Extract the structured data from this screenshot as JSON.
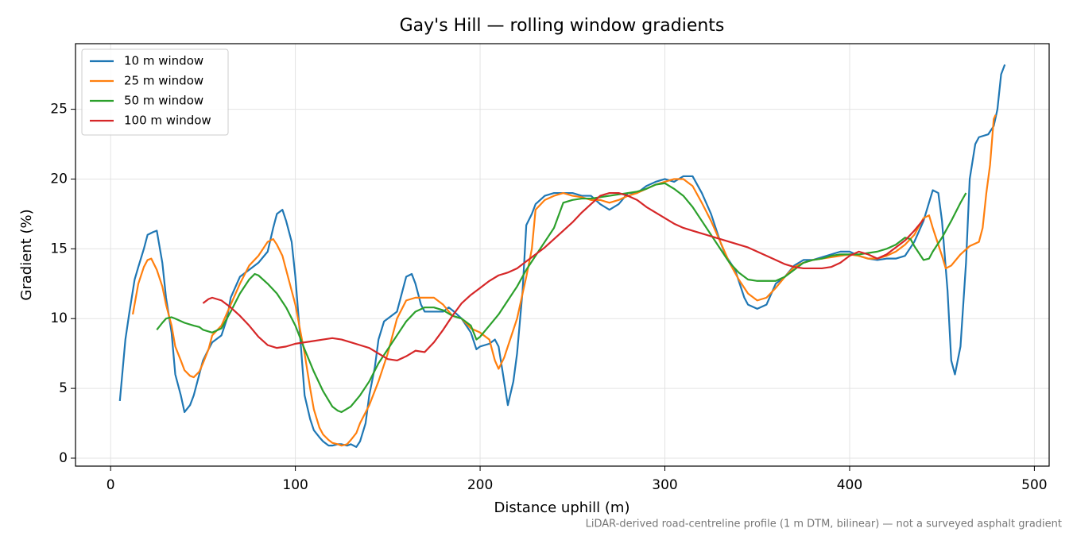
{
  "chart_data": {
    "type": "line",
    "title": "Gay's Hill — rolling window gradients",
    "x_label": "Distance uphill (m)",
    "y_label": "Gradient (%)",
    "footnote": "LiDAR-derived road-centreline profile (1 m DTM, bilinear) — not a surveyed asphalt gradient",
    "xlim": [
      -19,
      508
    ],
    "ylim": [
      -0.57,
      29.7
    ],
    "xticks": [
      0,
      100,
      200,
      300,
      400,
      500
    ],
    "yticks": [
      0,
      5,
      10,
      15,
      20,
      25
    ],
    "grid": true,
    "legend": "upper left",
    "series": [
      {
        "name": "10 m window",
        "color": "#1f77b4",
        "x": [
          5,
          8,
          10,
          13,
          15,
          18,
          20,
          23,
          25,
          28,
          30,
          33,
          35,
          38,
          40,
          43,
          45,
          48,
          50,
          53,
          55,
          58,
          60,
          63,
          65,
          70,
          75,
          80,
          85,
          88,
          90,
          93,
          95,
          98,
          100,
          103,
          105,
          108,
          110,
          113,
          115,
          118,
          120,
          123,
          125,
          128,
          130,
          133,
          135,
          138,
          140,
          143,
          145,
          148,
          150,
          155,
          158,
          160,
          163,
          165,
          168,
          170,
          175,
          180,
          183,
          185,
          190,
          195,
          198,
          200,
          205,
          208,
          210,
          213,
          215,
          218,
          220,
          223,
          225,
          228,
          230,
          235,
          240,
          245,
          250,
          255,
          260,
          265,
          270,
          275,
          280,
          285,
          290,
          295,
          300,
          305,
          310,
          315,
          320,
          325,
          330,
          333,
          338,
          343,
          345,
          350,
          355,
          360,
          365,
          370,
          375,
          380,
          385,
          390,
          395,
          400,
          405,
          410,
          415,
          420,
          425,
          430,
          435,
          440,
          445,
          448,
          450,
          453,
          455,
          457,
          460,
          463,
          465,
          468,
          470,
          475,
          478,
          480,
          482,
          484
        ],
        "values": [
          4.1,
          8.5,
          10.3,
          12.8,
          13.7,
          15,
          16,
          16.2,
          16.3,
          14,
          11.5,
          9,
          6,
          4.5,
          3.3,
          3.8,
          4.5,
          6,
          7,
          7.8,
          8.3,
          8.6,
          8.8,
          10,
          11.5,
          13,
          13.5,
          14,
          14.8,
          16.5,
          17.5,
          17.8,
          17,
          15.5,
          13,
          8,
          4.5,
          2.8,
          2,
          1.5,
          1.2,
          0.9,
          0.9,
          1.0,
          1.0,
          0.9,
          1,
          0.8,
          1.2,
          2.5,
          4.5,
          6.5,
          8.5,
          9.8,
          10,
          10.5,
          12,
          13,
          13.2,
          12.5,
          11,
          10.5,
          10.5,
          10.5,
          10.8,
          10.6,
          10,
          9,
          7.8,
          8,
          8.2,
          8.5,
          8,
          5.5,
          3.8,
          5.5,
          7.5,
          12,
          16.7,
          17.5,
          18.2,
          18.8,
          19,
          19,
          19,
          18.8,
          18.8,
          18.2,
          17.8,
          18.2,
          19,
          19,
          19.5,
          19.8,
          20,
          19.8,
          20.2,
          20.2,
          19,
          17.5,
          15.5,
          14.5,
          13.5,
          11.5,
          11,
          10.7,
          11,
          12.5,
          13,
          13.8,
          14.2,
          14.2,
          14.4,
          14.6,
          14.8,
          14.8,
          14.5,
          14.3,
          14.2,
          14.3,
          14.3,
          14.5,
          15.5,
          17,
          19.2,
          19,
          17,
          12,
          7,
          6,
          8,
          14,
          20,
          22.5,
          23,
          23.2,
          23.8,
          25,
          27.5,
          28.2
        ]
      },
      {
        "name": "25 m window",
        "color": "#ff7f0e",
        "x": [
          12,
          15,
          18,
          20,
          22,
          25,
          28,
          30,
          33,
          35,
          38,
          40,
          43,
          45,
          48,
          50,
          53,
          55,
          60,
          65,
          70,
          75,
          80,
          85,
          88,
          90,
          93,
          95,
          100,
          105,
          108,
          110,
          113,
          115,
          118,
          120,
          123,
          125,
          128,
          130,
          133,
          135,
          140,
          145,
          150,
          155,
          160,
          165,
          170,
          175,
          180,
          185,
          190,
          195,
          200,
          205,
          208,
          210,
          213,
          215,
          220,
          225,
          228,
          230,
          235,
          240,
          245,
          250,
          255,
          260,
          265,
          270,
          275,
          280,
          285,
          290,
          295,
          300,
          305,
          310,
          315,
          320,
          325,
          330,
          335,
          340,
          345,
          350,
          355,
          360,
          365,
          370,
          375,
          380,
          385,
          390,
          395,
          400,
          405,
          410,
          415,
          420,
          425,
          430,
          435,
          440,
          443,
          445,
          450,
          452,
          455,
          460,
          465,
          470,
          472,
          474,
          476,
          478,
          479
        ],
        "values": [
          10.3,
          12.5,
          13.7,
          14.2,
          14.3,
          13.5,
          12.3,
          11,
          9.5,
          8,
          7,
          6.3,
          5.9,
          5.8,
          6.2,
          6.8,
          7.8,
          8.8,
          9.5,
          11,
          12.5,
          13.8,
          14.5,
          15.5,
          15.7,
          15.3,
          14.5,
          13.5,
          11,
          7.5,
          5,
          3.5,
          2.2,
          1.7,
          1.3,
          1.1,
          1.0,
          0.9,
          1.0,
          1.3,
          1.8,
          2.5,
          3.8,
          5.5,
          7.5,
          10,
          11.3,
          11.5,
          11.5,
          11.5,
          11,
          10.2,
          10,
          9.3,
          9,
          8.5,
          7,
          6.4,
          7.2,
          8,
          10,
          13,
          15,
          17.8,
          18.5,
          18.8,
          19,
          18.8,
          18.7,
          18.5,
          18.5,
          18.3,
          18.5,
          18.8,
          19,
          19.3,
          19.6,
          19.8,
          20,
          20,
          19.5,
          18.3,
          17,
          15.5,
          14,
          12.8,
          11.8,
          11.3,
          11.5,
          12.2,
          13,
          13.7,
          14,
          14.2,
          14.3,
          14.4,
          14.5,
          14.6,
          14.5,
          14.3,
          14.3,
          14.5,
          14.8,
          15.3,
          16,
          17.2,
          17.4,
          16.5,
          14.5,
          13.6,
          13.8,
          14.6,
          15.2,
          15.5,
          16.5,
          19,
          21,
          24.3,
          24.6
        ]
      },
      {
        "name": "50 m window",
        "color": "#2ca02c",
        "x": [
          25,
          28,
          30,
          33,
          35,
          40,
          45,
          48,
          50,
          55,
          60,
          65,
          70,
          75,
          78,
          80,
          85,
          90,
          95,
          100,
          105,
          110,
          115,
          120,
          123,
          125,
          130,
          135,
          140,
          145,
          150,
          155,
          160,
          165,
          170,
          175,
          180,
          185,
          190,
          195,
          198,
          200,
          205,
          210,
          215,
          220,
          225,
          230,
          235,
          240,
          245,
          250,
          255,
          260,
          265,
          270,
          275,
          280,
          285,
          290,
          295,
          300,
          305,
          310,
          315,
          320,
          325,
          330,
          335,
          340,
          345,
          350,
          355,
          360,
          365,
          370,
          375,
          380,
          385,
          390,
          395,
          400,
          405,
          410,
          415,
          420,
          425,
          430,
          433,
          435,
          440,
          443,
          445,
          450,
          455,
          460,
          463
        ],
        "values": [
          9.2,
          9.7,
          10,
          10.1,
          10,
          9.7,
          9.5,
          9.4,
          9.2,
          9,
          9.3,
          10.5,
          11.8,
          12.8,
          13.2,
          13.1,
          12.5,
          11.8,
          10.8,
          9.5,
          7.8,
          6.2,
          4.8,
          3.7,
          3.4,
          3.3,
          3.7,
          4.5,
          5.5,
          6.8,
          7.8,
          8.8,
          9.8,
          10.5,
          10.8,
          10.8,
          10.6,
          10.2,
          10,
          9.5,
          8.5,
          8.7,
          9.5,
          10.3,
          11.3,
          12.3,
          13.5,
          14.5,
          15.5,
          16.5,
          18.3,
          18.5,
          18.6,
          18.6,
          18.7,
          18.8,
          18.9,
          19,
          19.1,
          19.3,
          19.6,
          19.7,
          19.3,
          18.8,
          18,
          17,
          16,
          15,
          14,
          13.3,
          12.8,
          12.7,
          12.7,
          12.7,
          13,
          13.5,
          14,
          14.2,
          14.3,
          14.5,
          14.6,
          14.6,
          14.6,
          14.7,
          14.8,
          15,
          15.3,
          15.8,
          15.7,
          15.2,
          14.2,
          14.3,
          14.8,
          15.8,
          17,
          18.3,
          19
        ]
      },
      {
        "name": "100 m window",
        "color": "#d62728",
        "x": [
          50,
          53,
          55,
          60,
          65,
          70,
          75,
          80,
          85,
          90,
          95,
          100,
          105,
          110,
          115,
          120,
          125,
          130,
          135,
          140,
          145,
          150,
          155,
          160,
          165,
          170,
          175,
          180,
          185,
          190,
          195,
          200,
          205,
          210,
          215,
          220,
          225,
          230,
          235,
          240,
          245,
          250,
          255,
          260,
          265,
          270,
          275,
          280,
          285,
          290,
          295,
          300,
          305,
          310,
          315,
          320,
          325,
          330,
          335,
          340,
          345,
          350,
          355,
          360,
          365,
          370,
          375,
          380,
          385,
          390,
          395,
          400,
          405,
          410,
          415,
          420,
          425,
          430,
          435,
          440
        ],
        "values": [
          11.1,
          11.4,
          11.5,
          11.3,
          10.8,
          10.2,
          9.5,
          8.7,
          8.1,
          7.9,
          8,
          8.2,
          8.3,
          8.4,
          8.5,
          8.6,
          8.5,
          8.3,
          8.1,
          7.9,
          7.5,
          7.1,
          7,
          7.3,
          7.7,
          7.6,
          8.3,
          9.2,
          10.2,
          11.1,
          11.7,
          12.2,
          12.7,
          13.1,
          13.3,
          13.6,
          14.1,
          14.6,
          15.1,
          15.7,
          16.3,
          16.9,
          17.6,
          18.2,
          18.8,
          19,
          19,
          18.8,
          18.5,
          18,
          17.6,
          17.2,
          16.8,
          16.5,
          16.3,
          16.1,
          15.9,
          15.7,
          15.5,
          15.3,
          15.1,
          14.8,
          14.5,
          14.2,
          13.9,
          13.7,
          13.6,
          13.6,
          13.6,
          13.7,
          14,
          14.5,
          14.8,
          14.6,
          14.3,
          14.6,
          15.1,
          15.6,
          16.3,
          17.1
        ]
      }
    ]
  }
}
